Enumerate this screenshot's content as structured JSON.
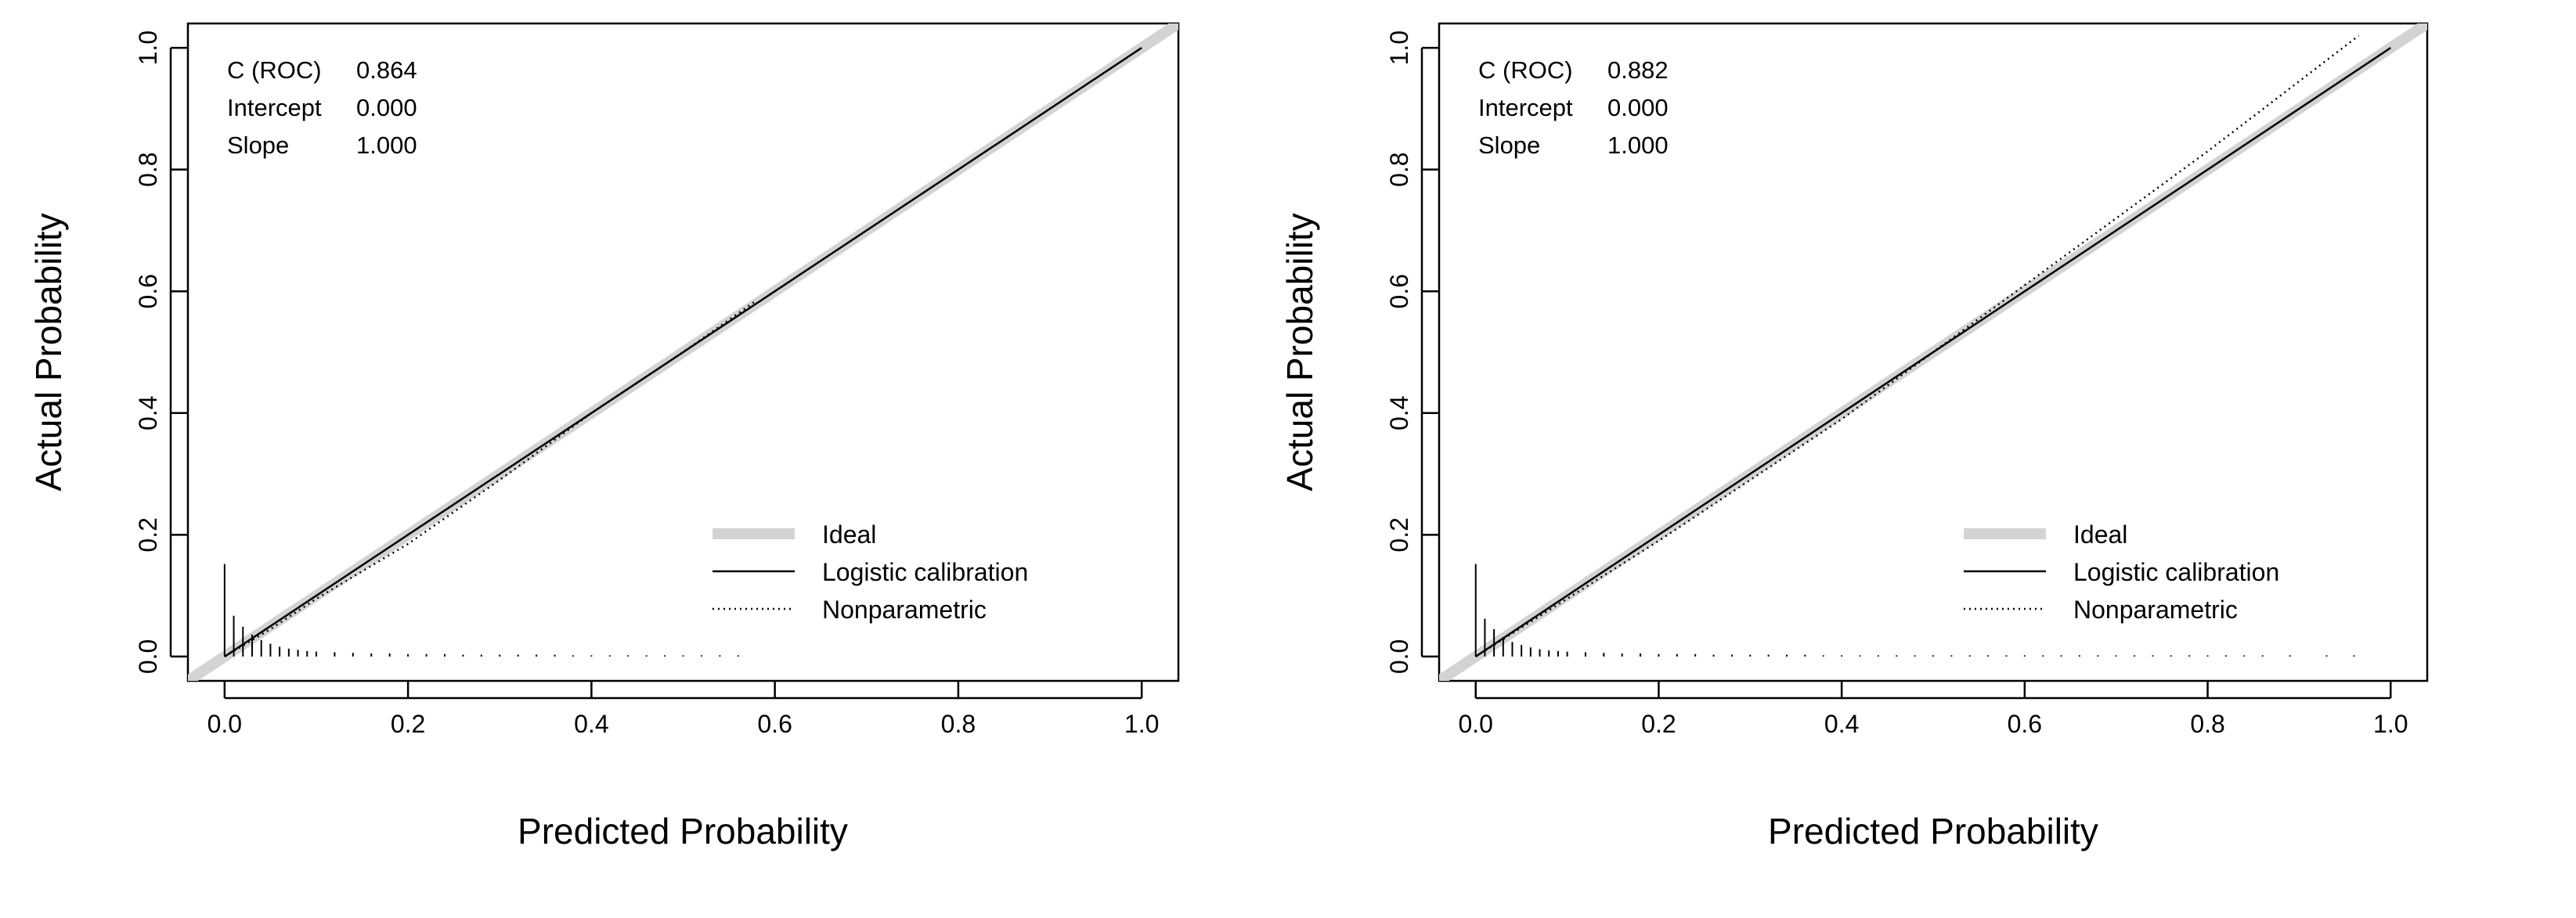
{
  "chart_data": [
    {
      "type": "line",
      "title": "",
      "xlabel": "Predicted Probability",
      "ylabel": "Actual Probability",
      "xlim": [
        -0.04,
        1.04
      ],
      "ylim": [
        -0.04,
        1.04
      ],
      "x_ticks": [
        "0.0",
        "0.2",
        "0.4",
        "0.6",
        "0.8",
        "1.0"
      ],
      "y_ticks": [
        "0.0",
        "0.2",
        "0.4",
        "0.6",
        "0.8",
        "1.0"
      ],
      "x_tick_values": [
        0,
        0.2,
        0.4,
        0.6,
        0.8,
        1.0
      ],
      "y_tick_values": [
        0,
        0.2,
        0.4,
        0.6,
        0.8,
        1.0
      ],
      "stats": [
        {
          "label": "C (ROC)",
          "value": "0.864"
        },
        {
          "label": "Intercept",
          "value": "0.000"
        },
        {
          "label": "Slope",
          "value": "1.000"
        }
      ],
      "legend": [
        "Ideal",
        "Logistic calibration",
        "Nonparametric"
      ],
      "legend_position": "bottom-right",
      "series": [
        {
          "name": "Ideal",
          "style": "thick-gray",
          "color": "#d3d3d3",
          "x": [
            -0.04,
            1.04
          ],
          "y": [
            -0.04,
            1.04
          ]
        },
        {
          "name": "Logistic calibration",
          "style": "solid",
          "color": "#000000",
          "x": [
            0.0,
            0.2,
            0.4,
            0.6,
            0.8,
            1.0
          ],
          "y": [
            0.0,
            0.2,
            0.4,
            0.6,
            0.8,
            1.0
          ]
        },
        {
          "name": "Nonparametric",
          "style": "dotted",
          "color": "#000000",
          "x": [
            0.0,
            0.05,
            0.1,
            0.2,
            0.3,
            0.4,
            0.5,
            0.58
          ],
          "y": [
            0.0,
            0.045,
            0.095,
            0.185,
            0.29,
            0.4,
            0.5,
            0.585
          ]
        }
      ],
      "histogram": {
        "x": [
          0.0,
          0.01,
          0.02,
          0.03,
          0.04,
          0.05,
          0.06,
          0.07,
          0.08,
          0.09,
          0.1,
          0.12,
          0.14,
          0.16,
          0.18,
          0.2,
          0.22,
          0.24,
          0.26,
          0.28,
          0.3,
          0.32,
          0.34,
          0.36,
          0.38,
          0.4,
          0.42,
          0.44,
          0.46,
          0.48,
          0.5,
          0.52,
          0.54,
          0.56
        ],
        "heights": [
          0.152,
          0.067,
          0.049,
          0.036,
          0.027,
          0.021,
          0.016,
          0.013,
          0.011,
          0.009,
          0.008,
          0.007,
          0.006,
          0.005,
          0.005,
          0.004,
          0.004,
          0.004,
          0.003,
          0.003,
          0.003,
          0.003,
          0.003,
          0.003,
          0.002,
          0.002,
          0.002,
          0.002,
          0.002,
          0.002,
          0.002,
          0.002,
          0.002,
          0.002
        ]
      }
    },
    {
      "type": "line",
      "title": "",
      "xlabel": "Predicted Probability",
      "ylabel": "Actual Probability",
      "xlim": [
        -0.04,
        1.04
      ],
      "ylim": [
        -0.04,
        1.04
      ],
      "x_ticks": [
        "0.0",
        "0.2",
        "0.4",
        "0.6",
        "0.8",
        "1.0"
      ],
      "y_ticks": [
        "0.0",
        "0.2",
        "0.4",
        "0.6",
        "0.8",
        "1.0"
      ],
      "x_tick_values": [
        0,
        0.2,
        0.4,
        0.6,
        0.8,
        1.0
      ],
      "y_tick_values": [
        0,
        0.2,
        0.4,
        0.6,
        0.8,
        1.0
      ],
      "stats": [
        {
          "label": "C (ROC)",
          "value": "0.882"
        },
        {
          "label": "Intercept",
          "value": "0.000"
        },
        {
          "label": "Slope",
          "value": "1.000"
        }
      ],
      "legend": [
        "Ideal",
        "Logistic calibration",
        "Nonparametric"
      ],
      "legend_position": "bottom-right",
      "series": [
        {
          "name": "Ideal",
          "style": "thick-gray",
          "color": "#d3d3d3",
          "x": [
            -0.04,
            1.04
          ],
          "y": [
            -0.04,
            1.04
          ]
        },
        {
          "name": "Logistic calibration",
          "style": "solid",
          "color": "#000000",
          "x": [
            0.0,
            0.2,
            0.4,
            0.6,
            0.8,
            1.0
          ],
          "y": [
            0.0,
            0.2,
            0.4,
            0.6,
            0.8,
            1.0
          ]
        },
        {
          "name": "Nonparametric",
          "style": "dotted",
          "color": "#000000",
          "x": [
            0.0,
            0.1,
            0.2,
            0.3,
            0.4,
            0.5,
            0.6,
            0.7,
            0.8,
            0.9,
            0.965
          ],
          "y": [
            0.0,
            0.095,
            0.19,
            0.29,
            0.39,
            0.5,
            0.61,
            0.72,
            0.83,
            0.945,
            1.02
          ]
        }
      ],
      "histogram": {
        "x": [
          0.0,
          0.01,
          0.02,
          0.03,
          0.04,
          0.05,
          0.06,
          0.07,
          0.08,
          0.09,
          0.1,
          0.12,
          0.14,
          0.16,
          0.18,
          0.2,
          0.22,
          0.24,
          0.26,
          0.28,
          0.3,
          0.32,
          0.34,
          0.36,
          0.38,
          0.4,
          0.42,
          0.44,
          0.46,
          0.48,
          0.5,
          0.52,
          0.54,
          0.56,
          0.58,
          0.6,
          0.62,
          0.64,
          0.66,
          0.68,
          0.7,
          0.72,
          0.74,
          0.76,
          0.78,
          0.8,
          0.82,
          0.84,
          0.86,
          0.89,
          0.93,
          0.96
        ],
        "heights": [
          0.152,
          0.062,
          0.045,
          0.032,
          0.024,
          0.019,
          0.015,
          0.012,
          0.01,
          0.009,
          0.008,
          0.007,
          0.006,
          0.005,
          0.005,
          0.004,
          0.004,
          0.004,
          0.003,
          0.003,
          0.003,
          0.003,
          0.003,
          0.003,
          0.002,
          0.002,
          0.002,
          0.002,
          0.002,
          0.002,
          0.002,
          0.002,
          0.002,
          0.002,
          0.002,
          0.002,
          0.002,
          0.002,
          0.002,
          0.002,
          0.002,
          0.002,
          0.002,
          0.002,
          0.002,
          0.002,
          0.002,
          0.002,
          0.002,
          0.002,
          0.002,
          0.002
        ]
      }
    }
  ]
}
